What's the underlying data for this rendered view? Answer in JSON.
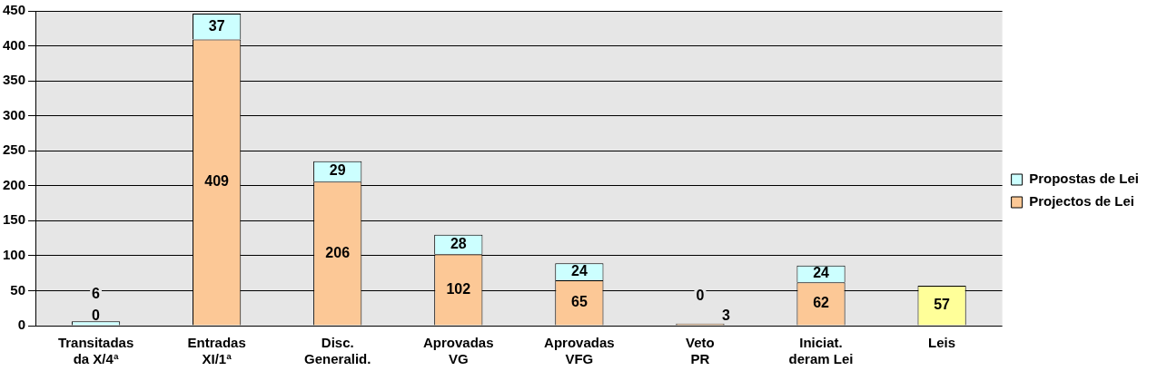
{
  "chart_data": {
    "type": "bar",
    "stacked": true,
    "categories": [
      "Transitadas da X/4ª",
      "Entradas XI/1ª",
      "Disc. Generalid.",
      "Aprovadas VG",
      "Aprovadas VFG",
      "Veto PR",
      "Iniciat. deram Lei",
      "Leis"
    ],
    "series": [
      {
        "name": "Projectos de Lei",
        "color": "#fcc896",
        "values": [
          0,
          409,
          206,
          102,
          65,
          3,
          62,
          null
        ]
      },
      {
        "name": "Propostas de Lei",
        "color": "#ccffff",
        "values": [
          6,
          37,
          29,
          28,
          24,
          0,
          24,
          null
        ]
      },
      {
        "color": "#ffff99",
        "values": [
          null,
          null,
          null,
          null,
          null,
          null,
          null,
          57
        ]
      }
    ],
    "ylim": [
      0,
      450
    ],
    "yticks": [
      0,
      50,
      100,
      150,
      200,
      250,
      300,
      350,
      400,
      450
    ],
    "grid": "y",
    "legend": "right",
    "data_labels": true
  }
}
